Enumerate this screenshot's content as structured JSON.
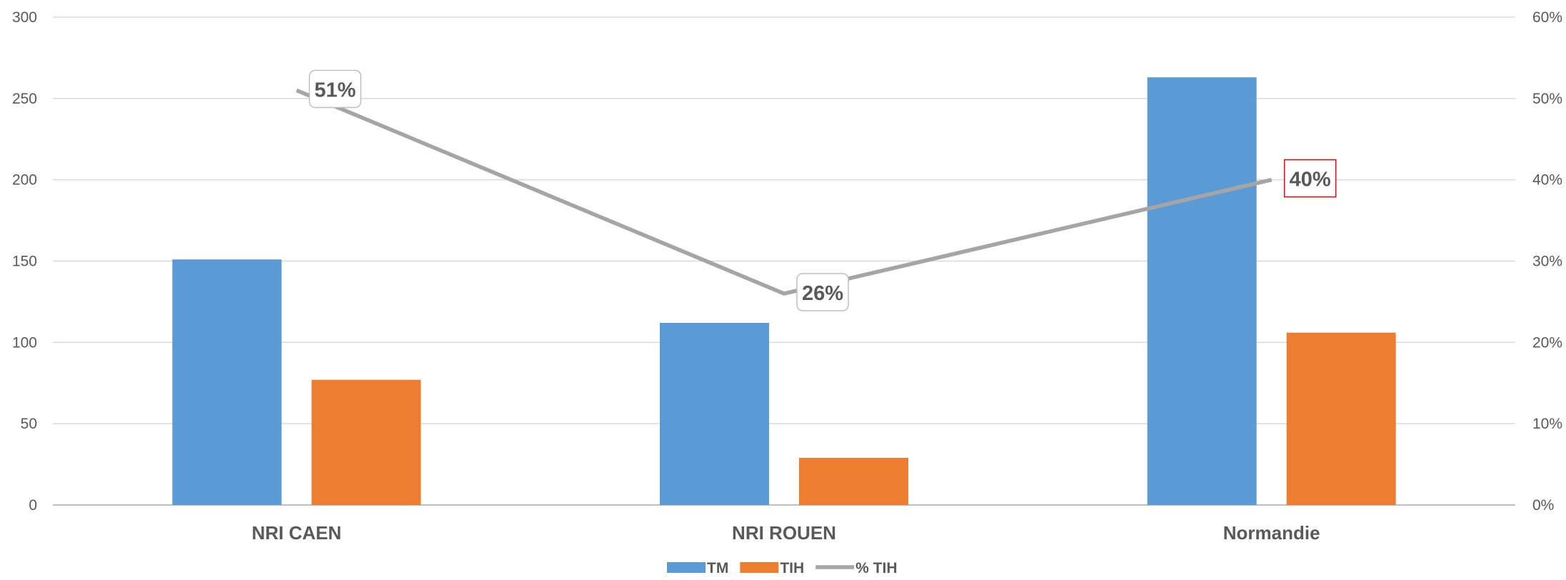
{
  "chart_data": {
    "type": "bar",
    "categories": [
      "NRI CAEN",
      "NRI ROUEN",
      "Normandie"
    ],
    "series": [
      {
        "name": "TM",
        "type": "bar",
        "axis": "left",
        "color": "#5B9BD5",
        "values": [
          151,
          112,
          263
        ]
      },
      {
        "name": "TIH",
        "type": "bar",
        "axis": "left",
        "color": "#ED7D31",
        "values": [
          77,
          29,
          106
        ]
      },
      {
        "name": "% TIH",
        "type": "line",
        "axis": "right",
        "color": "#A5A5A5",
        "values": [
          0.51,
          0.26,
          0.4
        ],
        "data_labels": [
          "51%",
          "26%",
          "40%"
        ]
      }
    ],
    "y_left": {
      "range": [
        0,
        300
      ],
      "ticks": [
        "0",
        "50",
        "100",
        "150",
        "200",
        "250",
        "300"
      ]
    },
    "y_right": {
      "range": [
        0,
        0.6
      ],
      "ticks": [
        "0%",
        "10%",
        "20%",
        "30%",
        "40%",
        "50%",
        "60%"
      ]
    },
    "grid": true,
    "legend": "bottom",
    "highlighted_label": "40%",
    "highlight_color": "#FF0000"
  }
}
